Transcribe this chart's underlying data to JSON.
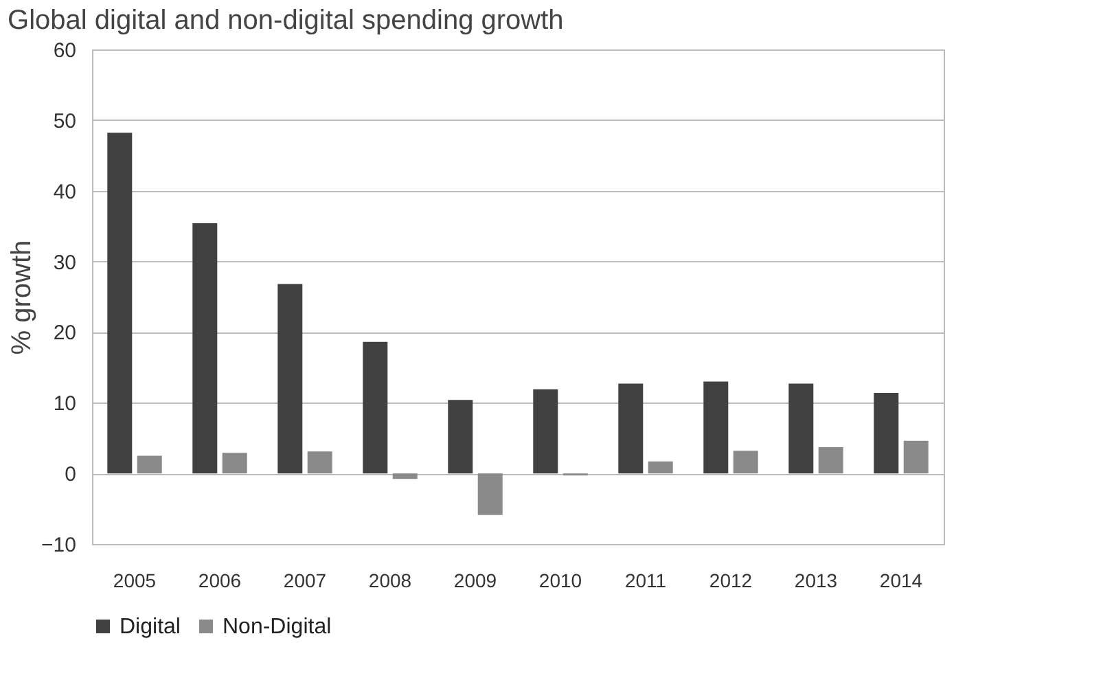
{
  "chart_data": {
    "type": "bar",
    "title": "Global digital and non-digital spending growth",
    "ylabel": "% growth",
    "categories": [
      "2005",
      "2006",
      "2007",
      "2008",
      "2009",
      "2010",
      "2011",
      "2012",
      "2013",
      "2014"
    ],
    "series": [
      {
        "name": "Digital",
        "color": "#404040",
        "values": [
          48.2,
          35.4,
          26.8,
          18.6,
          10.4,
          11.9,
          12.7,
          13.0,
          12.7,
          11.4
        ]
      },
      {
        "name": "Non-Digital",
        "color": "#8a8a8a",
        "values": [
          2.5,
          2.9,
          3.1,
          -0.8,
          -5.9,
          -0.3,
          1.7,
          3.2,
          3.7,
          4.6
        ]
      }
    ],
    "ylim": [
      -10,
      60
    ],
    "yticks": [
      -10,
      0,
      10,
      20,
      30,
      40,
      50,
      60
    ],
    "grid": "y",
    "legend": "bottom"
  }
}
